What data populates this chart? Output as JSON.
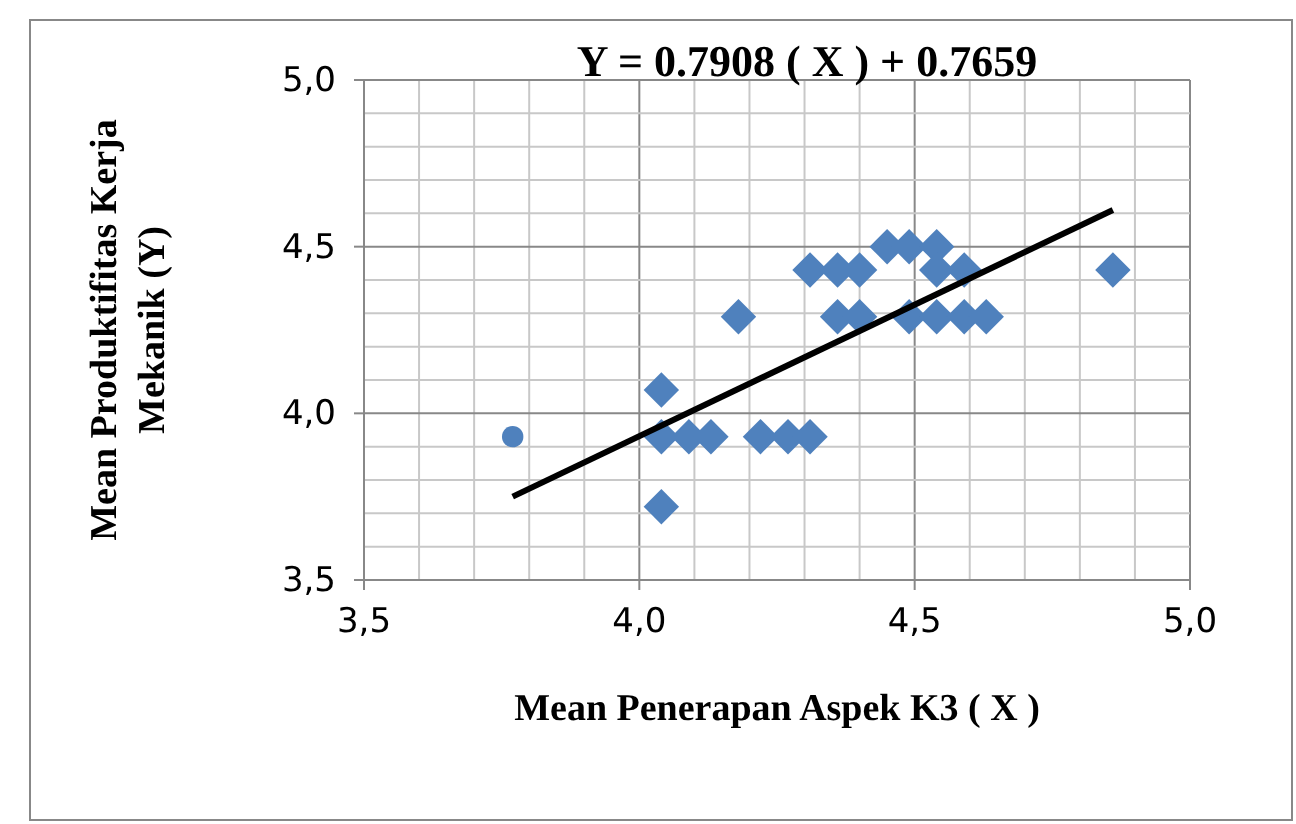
{
  "chart_data": {
    "type": "scatter",
    "title": "Y  = 0.7908 ( X )  + 0.7659",
    "xlabel": "Mean Penerapan Aspek K3 ( X )",
    "ylabel": "Mean Produktifitas Kerja Mekanik (Y)",
    "xlim": [
      3.5,
      5.0
    ],
    "ylim": [
      3.5,
      5.0
    ],
    "xticks": [
      {
        "value": 3.5,
        "label": "3,5"
      },
      {
        "value": 3.6,
        "label": null
      },
      {
        "value": 3.7,
        "label": null
      },
      {
        "value": 3.8,
        "label": null
      },
      {
        "value": 3.9,
        "label": null
      },
      {
        "value": 4.0,
        "label": "4,0"
      },
      {
        "value": 4.1,
        "label": null
      },
      {
        "value": 4.2,
        "label": null
      },
      {
        "value": 4.3,
        "label": null
      },
      {
        "value": 4.4,
        "label": null
      },
      {
        "value": 4.5,
        "label": "4,5"
      },
      {
        "value": 4.6,
        "label": null
      },
      {
        "value": 4.7,
        "label": null
      },
      {
        "value": 4.8,
        "label": null
      },
      {
        "value": 4.9,
        "label": null
      },
      {
        "value": 5.0,
        "label": "5,0"
      }
    ],
    "yticks": [
      {
        "value": 3.5,
        "label": "3,5"
      },
      {
        "value": 3.6,
        "label": null
      },
      {
        "value": 3.7,
        "label": null
      },
      {
        "value": 3.8,
        "label": null
      },
      {
        "value": 3.9,
        "label": null
      },
      {
        "value": 4.0,
        "label": "4,0"
      },
      {
        "value": 4.1,
        "label": null
      },
      {
        "value": 4.2,
        "label": null
      },
      {
        "value": 4.3,
        "label": null
      },
      {
        "value": 4.4,
        "label": null
      },
      {
        "value": 4.5,
        "label": "4,5"
      },
      {
        "value": 4.6,
        "label": null
      },
      {
        "value": 4.7,
        "label": null
      },
      {
        "value": 4.8,
        "label": null
      },
      {
        "value": 4.9,
        "label": null
      },
      {
        "value": 5.0,
        "label": "5,0"
      }
    ],
    "grid": true,
    "series": [
      {
        "marker": "diamond",
        "color": "#4f81bd",
        "x": [
          4.04,
          4.04,
          4.04,
          4.09,
          4.13,
          4.18,
          4.22,
          4.27,
          4.31,
          4.31,
          4.36,
          4.4,
          4.36,
          4.4,
          4.45,
          4.49,
          4.54,
          4.49,
          4.54,
          4.54,
          4.59,
          4.59,
          4.63,
          4.86
        ],
        "values": [
          4.07,
          3.93,
          3.72,
          3.93,
          3.93,
          4.29,
          3.93,
          3.93,
          3.93,
          4.43,
          4.43,
          4.43,
          4.29,
          4.29,
          4.5,
          4.5,
          4.5,
          4.29,
          4.29,
          4.43,
          4.43,
          4.29,
          4.29,
          4.43
        ]
      },
      {
        "marker": "circle",
        "color": "#4f81bd",
        "x": [
          3.77
        ],
        "values": [
          3.93
        ]
      },
      {
        "type": "line",
        "line_style": "solid",
        "color": "#000000",
        "x": [
          3.77,
          4.86
        ],
        "values": [
          3.75,
          4.61
        ]
      }
    ]
  }
}
